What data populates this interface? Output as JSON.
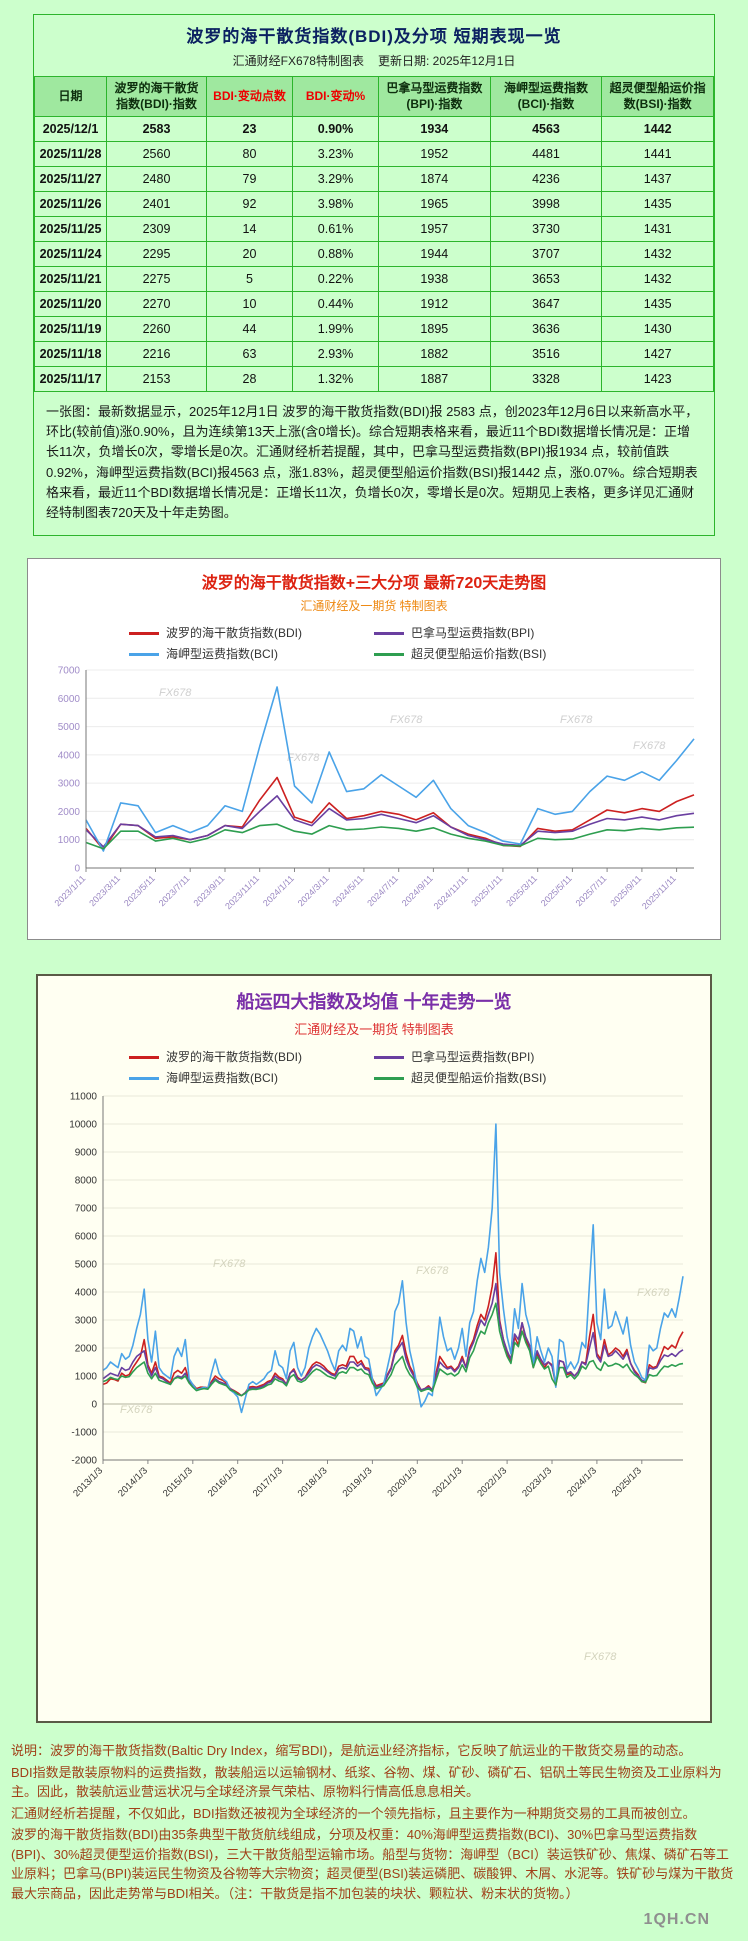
{
  "page": {
    "background": "#ccffcc"
  },
  "header": {
    "title": "波罗的海干散货指数(BDI)及分项 短期表现一览",
    "source": "汇通财经FX678特制图表",
    "update_date": "更新日期: 2025年12月1日"
  },
  "table": {
    "columns": [
      "日期",
      "波罗的海干散货指数(BDI)·指数",
      "BDI·变动点数",
      "BDI·变动%",
      "巴拿马型运费指数(BPI)·指数",
      "海岬型运费指数(BCI)·指数",
      "超灵便型船运价指数(BSI)·指数"
    ],
    "red_columns": [
      2,
      3
    ],
    "rows": [
      [
        "2025/12/1",
        "2583",
        "23",
        "0.90%",
        "1934",
        "4563",
        "1442"
      ],
      [
        "2025/11/28",
        "2560",
        "80",
        "3.23%",
        "1952",
        "4481",
        "1441"
      ],
      [
        "2025/11/27",
        "2480",
        "79",
        "3.29%",
        "1874",
        "4236",
        "1437"
      ],
      [
        "2025/11/26",
        "2401",
        "92",
        "3.98%",
        "1965",
        "3998",
        "1435"
      ],
      [
        "2025/11/25",
        "2309",
        "14",
        "0.61%",
        "1957",
        "3730",
        "1431"
      ],
      [
        "2025/11/24",
        "2295",
        "20",
        "0.88%",
        "1944",
        "3707",
        "1432"
      ],
      [
        "2025/11/21",
        "2275",
        "5",
        "0.22%",
        "1938",
        "3653",
        "1432"
      ],
      [
        "2025/11/20",
        "2270",
        "10",
        "0.44%",
        "1912",
        "3647",
        "1435"
      ],
      [
        "2025/11/19",
        "2260",
        "44",
        "1.99%",
        "1895",
        "3636",
        "1430"
      ],
      [
        "2025/11/18",
        "2216",
        "63",
        "2.93%",
        "1882",
        "3516",
        "1427"
      ],
      [
        "2025/11/17",
        "2153",
        "28",
        "1.32%",
        "1887",
        "3328",
        "1423"
      ]
    ]
  },
  "summary": "一张图：最新数据显示，2025年12月1日 波罗的海干散货指数(BDI)报 2583 点，创2023年12月6日以来新高水平，环比(较前值)涨0.90%，且为连续第13天上涨(含0增长)。综合短期表格来看，最近11个BDI数据增长情况是：正增长11次，负增长0次，零增长是0次。汇通财经析若提醒，其中，巴拿马型运费指数(BPI)报1934 点，较前值跌0.92%，海岬型运费指数(BCI)报4563 点，涨1.83%，超灵便型船运价指数(BSI)报1442 点，涨0.07%。综合短期表格来看，最近11个BDI数据增长情况是：正增长11次，负增长0次，零增长是0次。短期见上表格，更多详见汇通财经特制图表720天及十年走势图。",
  "chart_data": [
    {
      "type": "line",
      "title": "波罗的海干散货指数+三大分项 最新720天走势图",
      "subtitle": "汇通财经及一期货 特制图表",
      "watermark": "FX678",
      "grid": true,
      "legend_position": "top",
      "ylim": [
        0,
        7000
      ],
      "ystep": 1000,
      "points_per_tick": 2,
      "x_ticks": [
        "2023/1/11",
        "2023/3/11",
        "2023/5/11",
        "2023/7/11",
        "2023/9/11",
        "2023/11/11",
        "2024/1/11",
        "2024/3/11",
        "2024/5/11",
        "2024/7/11",
        "2024/9/11",
        "2024/11/11",
        "2025/1/11",
        "2025/3/11",
        "2025/5/11",
        "2025/7/11",
        "2025/9/11",
        "2025/11/11"
      ],
      "series": [
        {
          "name": "波罗的海干散货指数(BDI)",
          "color": "#cc2020",
          "values": [
            1400,
            650,
            1550,
            1500,
            1050,
            1100,
            1000,
            1150,
            1500,
            1450,
            2400,
            3200,
            1800,
            1600,
            2300,
            1750,
            1850,
            2000,
            1900,
            1700,
            1950,
            1450,
            1200,
            1050,
            800,
            760,
            1400,
            1300,
            1350,
            1700,
            2050,
            1950,
            2100,
            2000,
            2350,
            2583
          ]
        },
        {
          "name": "巴拿马型运费指数(BPI)",
          "color": "#6a3fa0",
          "values": [
            1350,
            750,
            1550,
            1500,
            1100,
            1150,
            1000,
            1150,
            1500,
            1400,
            2000,
            2550,
            1700,
            1500,
            2100,
            1700,
            1750,
            1900,
            1750,
            1600,
            1850,
            1450,
            1150,
            1000,
            850,
            800,
            1300,
            1250,
            1300,
            1550,
            1750,
            1700,
            1800,
            1700,
            1850,
            1934
          ]
        },
        {
          "name": "海岬型运费指数(BCI)",
          "color": "#4aa3e8",
          "values": [
            1700,
            600,
            2300,
            2200,
            1250,
            1500,
            1250,
            1500,
            2200,
            2000,
            4300,
            6400,
            2900,
            2300,
            4100,
            2700,
            2800,
            3300,
            2900,
            2500,
            3100,
            2100,
            1500,
            1250,
            950,
            850,
            2100,
            1900,
            2000,
            2700,
            3250,
            3100,
            3400,
            3100,
            3800,
            4563
          ]
        },
        {
          "name": "超灵便型船运价指数(BSI)",
          "color": "#2e9e50",
          "values": [
            900,
            680,
            1300,
            1300,
            950,
            1050,
            900,
            1050,
            1350,
            1250,
            1500,
            1550,
            1300,
            1200,
            1500,
            1350,
            1380,
            1450,
            1400,
            1300,
            1420,
            1200,
            1050,
            950,
            800,
            780,
            1050,
            1000,
            1020,
            1200,
            1350,
            1320,
            1400,
            1350,
            1420,
            1442
          ]
        }
      ]
    },
    {
      "type": "line",
      "title": "船运四大指数及均值 十年走势一览",
      "subtitle": "汇通财经及一期货 特制图表",
      "watermark": "FX678",
      "grid": true,
      "legend_position": "top",
      "ylim": [
        -2000,
        11000
      ],
      "ystep": 1000,
      "points_per_tick": 12,
      "x_ticks": [
        "2013/1/3",
        "2014/1/3",
        "2015/1/3",
        "2016/1/3",
        "2017/1/3",
        "2018/1/3",
        "2019/1/3",
        "2020/1/3",
        "2021/1/3",
        "2022/1/3",
        "2023/1/3",
        "2024/1/3",
        "2025/1/3"
      ],
      "series": [
        {
          "name": "波罗的海干散货指数(BDI)",
          "color": "#cc2020",
          "values": [
            700,
            750,
            900,
            880,
            820,
            1100,
            1000,
            1050,
            1300,
            1500,
            1700,
            2300,
            1400,
            1100,
            1500,
            1000,
            950,
            850,
            750,
            1100,
            1200,
            1100,
            1300,
            800,
            700,
            550,
            600,
            600,
            580,
            800,
            1000,
            900,
            850,
            750,
            550,
            480,
            400,
            300,
            400,
            600,
            620,
            600,
            650,
            700,
            800,
            850,
            1100,
            960,
            900,
            700,
            1100,
            1250,
            950,
            850,
            950,
            1200,
            1400,
            1500,
            1450,
            1350,
            1200,
            1100,
            1050,
            1350,
            1400,
            1350,
            1700,
            1700,
            1450,
            1550,
            1300,
            1270,
            900,
            650,
            700,
            750,
            1050,
            1300,
            1900,
            2100,
            2450,
            1800,
            1350,
            1090,
            750,
            500,
            550,
            650,
            500,
            1100,
            1700,
            1500,
            1300,
            1350,
            1200,
            1350,
            1700,
            1300,
            2000,
            2300,
            2800,
            3200,
            3000,
            3500,
            4200,
            5400,
            3000,
            2300,
            1800,
            1500,
            2400,
            2100,
            2900,
            2300,
            2000,
            1300,
            1800,
            1500,
            1300,
            1500,
            1400,
            650,
            1550,
            1500,
            1050,
            1100,
            1000,
            1150,
            1500,
            1450,
            2400,
            3200,
            1800,
            1600,
            2300,
            1750,
            1850,
            2000,
            1900,
            1700,
            1950,
            1450,
            1200,
            1050,
            800,
            760,
            1400,
            1300,
            1350,
            1700,
            2050,
            1950,
            2100,
            2000,
            2350,
            2583
          ]
        },
        {
          "name": "巴拿马型运费指数(BPI)",
          "color": "#6a3fa0",
          "values": [
            900,
            1000,
            1100,
            1050,
            1000,
            1300,
            1200,
            1250,
            1500,
            1700,
            1800,
            1900,
            1300,
            1000,
            1300,
            950,
            900,
            800,
            700,
            900,
            1000,
            950,
            1100,
            800,
            650,
            500,
            550,
            580,
            560,
            750,
            900,
            800,
            750,
            700,
            550,
            450,
            350,
            300,
            400,
            550,
            580,
            560,
            600,
            650,
            750,
            800,
            1000,
            900,
            850,
            700,
            1100,
            1200,
            900,
            850,
            950,
            1100,
            1300,
            1400,
            1350,
            1250,
            1150,
            1050,
            1000,
            1250,
            1300,
            1250,
            1500,
            1500,
            1350,
            1450,
            1250,
            1200,
            850,
            600,
            650,
            700,
            1000,
            1250,
            1800,
            2000,
            2200,
            1600,
            1250,
            1000,
            700,
            500,
            550,
            600,
            500,
            1000,
            1500,
            1350,
            1250,
            1300,
            1150,
            1300,
            1600,
            1300,
            1900,
            2200,
            2600,
            3000,
            2800,
            3200,
            3600,
            4300,
            2900,
            2300,
            1900,
            1600,
            2500,
            2300,
            2900,
            2400,
            2100,
            1400,
            1900,
            1600,
            1400,
            1500,
            1350,
            750,
            1550,
            1500,
            1100,
            1150,
            1000,
            1150,
            1500,
            1400,
            2000,
            2550,
            1700,
            1500,
            2100,
            1700,
            1750,
            1900,
            1750,
            1600,
            1850,
            1450,
            1150,
            1000,
            850,
            800,
            1300,
            1250,
            1300,
            1550,
            1750,
            1700,
            1800,
            1700,
            1850,
            1934
          ]
        },
        {
          "name": "海岬型运费指数(BCI)",
          "color": "#4aa3e8",
          "values": [
            1200,
            1300,
            1500,
            1400,
            1300,
            1800,
            1600,
            1700,
            2100,
            2700,
            3200,
            4100,
            2300,
            1500,
            2600,
            1300,
            1100,
            1000,
            900,
            1700,
            2000,
            1700,
            2300,
            900,
            700,
            500,
            550,
            600,
            550,
            1100,
            1600,
            1100,
            900,
            800,
            500,
            400,
            250,
            -300,
            200,
            700,
            800,
            700,
            800,
            900,
            1100,
            1200,
            1900,
            1400,
            1300,
            900,
            1900,
            2200,
            1300,
            1000,
            1300,
            2000,
            2400,
            2700,
            2500,
            2200,
            1900,
            1500,
            1200,
            1900,
            2100,
            1900,
            2700,
            2600,
            2000,
            2400,
            1700,
            1600,
            900,
            300,
            500,
            700,
            1300,
            1900,
            3300,
            3600,
            4400,
            2900,
            1900,
            1300,
            600,
            -100,
            100,
            400,
            300,
            1700,
            3100,
            2400,
            1900,
            2000,
            1600,
            2000,
            2700,
            1700,
            2900,
            3300,
            4400,
            5200,
            4700,
            5600,
            7000,
            10000,
            4700,
            3400,
            2400,
            1800,
            3400,
            2700,
            4300,
            3200,
            2700,
            1400,
            2400,
            1900,
            1500,
            2000,
            1700,
            600,
            2300,
            2200,
            1250,
            1500,
            1250,
            1500,
            2200,
            2000,
            4300,
            6400,
            2900,
            2300,
            4100,
            2700,
            2800,
            3300,
            2900,
            2500,
            3100,
            2100,
            1500,
            1250,
            950,
            850,
            2100,
            1900,
            2000,
            2700,
            3250,
            3100,
            3400,
            3100,
            3800,
            4563
          ]
        },
        {
          "name": "超灵便型船运价指数(BSI)",
          "color": "#2e9e50",
          "values": [
            800,
            850,
            950,
            900,
            870,
            1000,
            950,
            980,
            1150,
            1300,
            1400,
            1500,
            1100,
            900,
            1100,
            850,
            800,
            750,
            700,
            900,
            950,
            900,
            1000,
            750,
            600,
            480,
            520,
            550,
            530,
            700,
            850,
            750,
            700,
            650,
            500,
            450,
            350,
            300,
            380,
            500,
            530,
            520,
            550,
            600,
            680,
            720,
            900,
            820,
            780,
            650,
            950,
            1050,
            820,
            780,
            850,
            1000,
            1150,
            1250,
            1200,
            1100,
            1000,
            950,
            900,
            1100,
            1150,
            1100,
            1300,
            1300,
            1200,
            1250,
            1100,
            1050,
            750,
            550,
            600,
            650,
            850,
            1050,
            1400,
            1550,
            1700,
            1300,
            1050,
            900,
            600,
            450,
            500,
            550,
            450,
            850,
            1250,
            1150,
            1050,
            1100,
            1000,
            1100,
            1400,
            1150,
            1650,
            1900,
            2300,
            2600,
            2500,
            2900,
            3200,
            3600,
            2600,
            2100,
            1700,
            1450,
            2200,
            2050,
            2600,
            2200,
            1900,
            1300,
            1700,
            1450,
            1250,
            1350,
            900,
            680,
            1300,
            1300,
            950,
            1050,
            900,
            1050,
            1350,
            1250,
            1500,
            1550,
            1300,
            1200,
            1500,
            1350,
            1380,
            1450,
            1400,
            1300,
            1420,
            1200,
            1050,
            950,
            800,
            780,
            1050,
            1000,
            1020,
            1200,
            1350,
            1320,
            1400,
            1350,
            1420,
            1442
          ]
        }
      ]
    }
  ],
  "notes": [
    "说明：波罗的海干散货指数(Baltic Dry Index，缩写BDI)，是航运业经济指标，它反映了航运业的干散货交易量的动态。",
    "BDI指数是散装原物料的运费指数，散装船运以运输钢材、纸浆、谷物、煤、矿砂、磷矿石、铝矾土等民生物资及工业原料为主。因此，散装航运业营运状况与全球经济景气荣枯、原物料行情高低息息相关。",
    "汇通财经析若提醒，不仅如此，BDI指数还被视为全球经济的一个领先指标，且主要作为一种期货交易的工具而被创立。",
    "波罗的海干散货指数(BDI)由35条典型干散货航线组成，分项及权重：40%海岬型运费指数(BCI)、30%巴拿马型运费指数(BPI)、30%超灵便型运价指数(BSI)，三大干散货船型运输市场。船型与货物：海岬型（BCI）装运铁矿砂、焦煤、磷矿石等工业原料；巴拿马(BPI)装运民生物资及谷物等大宗物资；超灵便型(BSI)装运磷肥、碳酸钾、木屑、水泥等。铁矿砂与煤为干散货最大宗商品，因此走势常与BDI相关。（注：干散货是指不加包装的块状、颗粒状、粉末状的货物。）"
  ],
  "footer": {
    "logo": "1QH.CN"
  }
}
